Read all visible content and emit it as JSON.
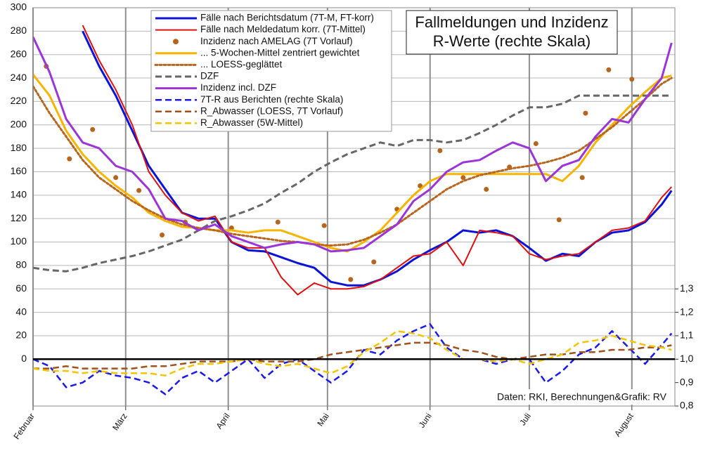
{
  "chart_data": {
    "type": "line",
    "title": "Fallmeldungen und Inzidenz",
    "subtitle": "R-Werte (rechte Skala)",
    "source": "Daten: RKI, Berechnungen&Grafik: RV",
    "xlim": [
      0,
      194
    ],
    "xticks": [
      {
        "value": 0,
        "label": "Februar"
      },
      {
        "value": 28,
        "label": "März"
      },
      {
        "value": 59,
        "label": "April"
      },
      {
        "value": 89,
        "label": "Mai"
      },
      {
        "value": 120,
        "label": "Juni"
      },
      {
        "value": 150,
        "label": "Juli"
      },
      {
        "value": 181,
        "label": "August"
      }
    ],
    "ylim": [
      -40,
      300
    ],
    "yticks": [
      0,
      20,
      40,
      60,
      80,
      100,
      120,
      140,
      160,
      180,
      200,
      220,
      240,
      260,
      280,
      300
    ],
    "y2lim": [
      0.8,
      2.5
    ],
    "y2ticks": [
      {
        "value": 0.8,
        "label": "0,8"
      },
      {
        "value": 0.9,
        "label": "0,9"
      },
      {
        "value": 1.0,
        "label": "1,0"
      },
      {
        "value": 1.1,
        "label": "1,1"
      },
      {
        "value": 1.2,
        "label": "1,2"
      },
      {
        "value": 1.3,
        "label": "1,3"
      }
    ],
    "grid": true,
    "x": [
      0,
      5,
      10,
      15,
      20,
      25,
      30,
      35,
      40,
      45,
      50,
      55,
      60,
      65,
      70,
      75,
      80,
      85,
      90,
      95,
      100,
      105,
      110,
      115,
      120,
      125,
      130,
      135,
      140,
      145,
      150,
      155,
      160,
      165,
      170,
      175,
      180,
      185,
      190,
      193
    ],
    "series": [
      {
        "name": "Fälle nach Berichtsdatum (7T-M, FT-korr)",
        "color": "#0a14d8",
        "style": "solid",
        "width": 3,
        "values": [
          null,
          null,
          null,
          280,
          250,
          225,
          195,
          165,
          145,
          125,
          120,
          120,
          100,
          93,
          92,
          87,
          82,
          78,
          66,
          63,
          63,
          68,
          75,
          85,
          93,
          100,
          110,
          108,
          110,
          105,
          95,
          84,
          90,
          88,
          100,
          108,
          110,
          117,
          132,
          144
        ]
      },
      {
        "name": "Fälle nach Meldedatum korr. (7T-Mittel)",
        "color": "#e01010",
        "style": "solid",
        "width": 2,
        "values": [
          null,
          null,
          null,
          285,
          255,
          230,
          200,
          160,
          140,
          125,
          118,
          122,
          100,
          95,
          95,
          70,
          55,
          65,
          60,
          60,
          62,
          68,
          78,
          88,
          90,
          100,
          80,
          110,
          108,
          105,
          90,
          85,
          88,
          90,
          100,
          110,
          112,
          118,
          138,
          147
        ]
      },
      {
        "name": "Inzidenz nach AMELAG (7T Vorlauf)",
        "color": "#b5651d",
        "style": "markers",
        "x": [
          4,
          11,
          18,
          25,
          32,
          39,
          46,
          60,
          74,
          88,
          96,
          103,
          110,
          117,
          123,
          130,
          137,
          144,
          152,
          159,
          166,
          167,
          174,
          181
        ],
        "values": [
          250,
          171,
          196,
          155,
          144,
          106,
          117,
          112,
          117,
          114,
          68,
          83,
          128,
          148,
          178,
          155,
          145,
          164,
          184,
          119,
          155,
          210,
          247,
          239
        ]
      },
      {
        "name": "... 5-Wochen-Mittel zentriert gewichtet",
        "color": "#f7b500",
        "style": "solid",
        "width": 3,
        "values": [
          243,
          225,
          195,
          175,
          160,
          148,
          138,
          125,
          118,
          113,
          112,
          110,
          110,
          108,
          110,
          110,
          105,
          100,
          95,
          92,
          100,
          110,
          125,
          140,
          152,
          158,
          158,
          158,
          158,
          158,
          158,
          158,
          152,
          165,
          185,
          200,
          215,
          228,
          240,
          242
        ]
      },
      {
        "name": "... LOESS-geglättet",
        "color": "#b8651d",
        "style": "dotted",
        "width": 3,
        "values": [
          233,
          210,
          190,
          170,
          155,
          145,
          135,
          127,
          120,
          115,
          112,
          110,
          107,
          105,
          103,
          101,
          100,
          98,
          97,
          98,
          102,
          108,
          115,
          125,
          135,
          145,
          152,
          157,
          160,
          163,
          165,
          168,
          172,
          178,
          188,
          198,
          210,
          222,
          235,
          240
        ]
      },
      {
        "name": "DZF",
        "color": "#666666",
        "style": "dashed",
        "width": 3,
        "values": [
          78,
          76,
          75,
          78,
          82,
          85,
          88,
          92,
          97,
          102,
          110,
          118,
          122,
          127,
          133,
          142,
          150,
          160,
          168,
          175,
          180,
          185,
          182,
          187,
          187,
          185,
          187,
          193,
          200,
          208,
          215,
          215,
          218,
          225,
          225,
          225,
          225,
          225,
          225,
          225
        ]
      },
      {
        "name": "Inzidenz incl. DZF",
        "color": "#9b35d8",
        "style": "solid",
        "width": 3,
        "values": [
          275,
          245,
          205,
          185,
          180,
          165,
          160,
          145,
          120,
          118,
          110,
          115,
          105,
          100,
          95,
          98,
          100,
          98,
          92,
          93,
          95,
          105,
          115,
          135,
          145,
          160,
          168,
          170,
          178,
          185,
          180,
          152,
          165,
          170,
          190,
          205,
          202,
          222,
          240,
          270
        ]
      },
      {
        "name": "7T-R aus Berichten (rechte Skala)",
        "color": "#1a1aee",
        "style": "dashed",
        "width": 2.5,
        "axis": "y2",
        "values": [
          1.0,
          0.97,
          0.88,
          0.9,
          0.95,
          0.93,
          0.92,
          0.9,
          0.85,
          0.92,
          0.95,
          0.9,
          0.95,
          1.0,
          0.92,
          0.98,
          1.0,
          0.95,
          0.9,
          0.95,
          1.04,
          1.02,
          1.08,
          1.12,
          1.15,
          1.05,
          1.0,
          1.0,
          0.98,
          1.0,
          1.0,
          0.9,
          0.95,
          1.02,
          1.05,
          1.12,
          1.05,
          0.98,
          1.06,
          1.11
        ]
      },
      {
        "name": "R_Abwasser (LOESS, 7T Vorlauf)",
        "color": "#a0521d",
        "style": "dashed",
        "width": 2.5,
        "axis": "y2",
        "values": [
          0.96,
          0.96,
          0.97,
          0.96,
          0.96,
          0.96,
          0.96,
          0.97,
          0.97,
          0.98,
          0.99,
          0.99,
          0.99,
          1.0,
          0.99,
          0.99,
          0.99,
          1.0,
          1.02,
          1.03,
          1.04,
          1.05,
          1.06,
          1.07,
          1.07,
          1.06,
          1.04,
          1.03,
          1.01,
          1.0,
          1.01,
          1.02,
          1.02,
          1.03,
          1.03,
          1.04,
          1.04,
          1.05,
          1.05,
          1.06
        ]
      },
      {
        "name": "R_Abwasser (5W-Mittel)",
        "color": "#f5c400",
        "style": "dashed",
        "width": 2.5,
        "axis": "y2",
        "values": [
          0.96,
          0.95,
          0.95,
          0.94,
          0.95,
          0.94,
          0.94,
          0.94,
          0.93,
          0.96,
          0.98,
          0.98,
          0.99,
          1.0,
          0.98,
          0.97,
          0.98,
          0.96,
          0.94,
          0.97,
          1.03,
          1.07,
          1.12,
          1.11,
          1.09,
          1.04,
          1.0,
          1.0,
          0.99,
          1.0,
          0.98,
          1.0,
          1.02,
          1.07,
          1.08,
          1.1,
          1.08,
          1.06,
          1.05,
          1.04
        ]
      }
    ]
  }
}
